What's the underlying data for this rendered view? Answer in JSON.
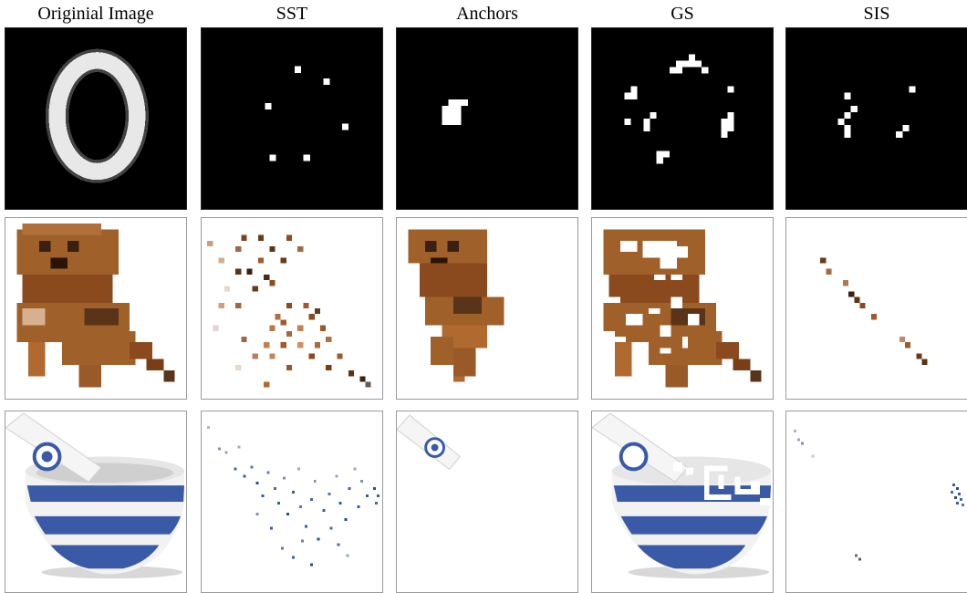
{
  "columns": [
    {
      "key": "original",
      "label": "Originial Image"
    },
    {
      "key": "sst",
      "label": "SST"
    },
    {
      "key": "anchors",
      "label": "Anchors"
    },
    {
      "key": "gs",
      "label": "GS"
    },
    {
      "key": "sis",
      "label": "SIS"
    }
  ],
  "rows": [
    {
      "key": "digit",
      "style": "dark"
    },
    {
      "key": "dog",
      "style": "light"
    },
    {
      "key": "bowl",
      "style": "light"
    }
  ],
  "colors": {
    "digit_background": "#000000",
    "digit_stroke": "#ffffff",
    "dog_brown": "#a0602a",
    "dog_dark": "#5a3418",
    "bowl_blue": "#3a5aa8",
    "bowl_white": "#f2f2f2",
    "panel_border": "#9a9a9a"
  }
}
